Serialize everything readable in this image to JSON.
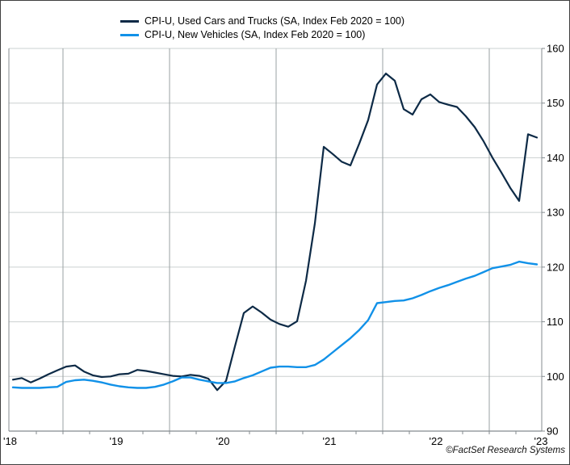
{
  "window": {
    "footer_credit": "©FactSet Research Systems"
  },
  "chart_data": {
    "type": "line",
    "title": "",
    "legend_position": "top-left",
    "grid": "on",
    "y_axis": {
      "min": 90,
      "max": 160,
      "step": 10,
      "side": "right"
    },
    "y_tick_labels": [
      "90",
      "100",
      "110",
      "120",
      "130",
      "140",
      "150",
      "160"
    ],
    "x_tick_labels": [
      "'18",
      "'19",
      "'20",
      "'21",
      "'22",
      "'23"
    ],
    "x_axis": {
      "start": "Jul 2018",
      "end": "Jun 2023",
      "frequency": "monthly",
      "gridlines": "year-boundaries"
    },
    "series": [
      {
        "name": "CPI-U, Used Cars and Trucks (SA, Index Feb 2020 = 100)",
        "color": "#0d2a46",
        "values": [
          99.4,
          99.7,
          98.9,
          99.6,
          100.4,
          101.1,
          101.8,
          102.0,
          100.9,
          100.2,
          99.9,
          100.0,
          100.4,
          100.5,
          101.2,
          101.0,
          100.7,
          100.4,
          100.1,
          100.0,
          100.3,
          100.1,
          99.6,
          97.5,
          99.2,
          105.5,
          111.6,
          112.8,
          111.7,
          110.4,
          109.6,
          109.1,
          110.1,
          117.5,
          128.0,
          142.0,
          140.7,
          139.3,
          138.6,
          142.6,
          146.9,
          153.4,
          155.4,
          154.1,
          148.9,
          147.9,
          150.7,
          151.6,
          150.2,
          149.7,
          149.3,
          147.6,
          145.6,
          143.0,
          140.0,
          137.3,
          134.5,
          132.1,
          144.3,
          143.7
        ]
      },
      {
        "name": "CPI-U, New Vehicles (SA, Index Feb 2020 = 100)",
        "color": "#1191e8",
        "values": [
          98.0,
          97.9,
          97.9,
          97.9,
          98.0,
          98.1,
          99.0,
          99.3,
          99.4,
          99.2,
          98.9,
          98.5,
          98.2,
          98.0,
          97.9,
          97.9,
          98.1,
          98.5,
          99.1,
          99.8,
          99.8,
          99.4,
          99.1,
          98.8,
          98.8,
          99.1,
          99.7,
          100.2,
          100.9,
          101.6,
          101.8,
          101.8,
          101.7,
          101.7,
          102.1,
          103.1,
          104.4,
          105.7,
          107.0,
          108.5,
          110.3,
          113.4,
          113.6,
          113.8,
          113.9,
          114.3,
          114.9,
          115.6,
          116.2,
          116.7,
          117.3,
          117.9,
          118.4,
          119.1,
          119.8,
          120.1,
          120.4,
          121.0,
          120.7,
          120.5
        ]
      }
    ]
  }
}
